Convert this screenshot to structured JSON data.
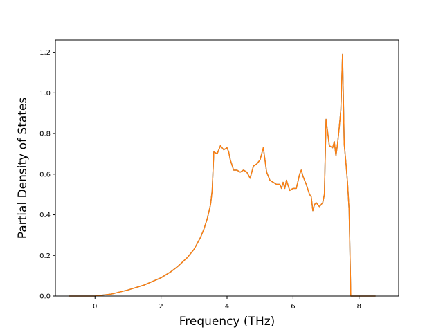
{
  "chart_data": {
    "type": "line",
    "title": "",
    "xlabel": "Frequency (THz)",
    "ylabel": "Partial Density of States",
    "xlim": [
      -1.2,
      9.2
    ],
    "ylim": [
      0.0,
      1.26
    ],
    "xticks": [
      0,
      2,
      4,
      6,
      8
    ],
    "yticks": [
      0.0,
      0.2,
      0.4,
      0.6,
      0.8,
      1.0,
      1.2
    ],
    "xtick_labels": [
      "0",
      "2",
      "4",
      "6",
      "8"
    ],
    "ytick_labels": [
      "0.0",
      "0.2",
      "0.4",
      "0.6",
      "0.8",
      "1.0",
      "1.2"
    ],
    "grid": false,
    "legend": false,
    "series": [
      {
        "color": "#1f77b4",
        "x": [
          -0.8,
          -0.3,
          0,
          0.5,
          1.0,
          1.5,
          2.0,
          2.3,
          2.5,
          2.6,
          2.7,
          2.8,
          3.0,
          3.2,
          3.3,
          3.4,
          3.5,
          3.55,
          3.6,
          3.7,
          3.8,
          3.9,
          4.0,
          4.05,
          4.1,
          4.2,
          4.3,
          4.4,
          4.5,
          4.6,
          4.7,
          4.8,
          4.9,
          5.0,
          5.05,
          5.1,
          5.2,
          5.3,
          5.4,
          5.5,
          5.6,
          5.65,
          5.7,
          5.75,
          5.8,
          5.9,
          6.0,
          6.1,
          6.2,
          6.25,
          6.3,
          6.4,
          6.5,
          6.55,
          6.6,
          6.65,
          6.7,
          6.8,
          6.9,
          6.95,
          7.0,
          7.1,
          7.2,
          7.25,
          7.3,
          7.35,
          7.4,
          7.45,
          7.5,
          7.55,
          7.6,
          7.65,
          7.7,
          7.75,
          8.0,
          8.5
        ],
        "y": [
          0.0,
          0.0,
          0.0,
          0.01,
          0.03,
          0.055,
          0.09,
          0.12,
          0.145,
          0.16,
          0.175,
          0.19,
          0.23,
          0.29,
          0.33,
          0.38,
          0.45,
          0.52,
          0.71,
          0.7,
          0.74,
          0.72,
          0.73,
          0.71,
          0.67,
          0.62,
          0.62,
          0.61,
          0.62,
          0.61,
          0.58,
          0.64,
          0.65,
          0.67,
          0.7,
          0.73,
          0.61,
          0.57,
          0.56,
          0.55,
          0.55,
          0.53,
          0.56,
          0.53,
          0.57,
          0.52,
          0.53,
          0.53,
          0.6,
          0.62,
          0.59,
          0.55,
          0.5,
          0.49,
          0.42,
          0.45,
          0.46,
          0.44,
          0.46,
          0.5,
          0.87,
          0.74,
          0.73,
          0.76,
          0.69,
          0.75,
          0.83,
          0.92,
          1.19,
          0.75,
          0.66,
          0.56,
          0.42,
          0.0,
          0.0,
          0.0
        ]
      },
      {
        "color": "#ff7f0e",
        "x": [
          -0.8,
          -0.3,
          0,
          0.5,
          1.0,
          1.5,
          2.0,
          2.3,
          2.5,
          2.6,
          2.7,
          2.8,
          3.0,
          3.2,
          3.3,
          3.4,
          3.5,
          3.55,
          3.6,
          3.7,
          3.8,
          3.9,
          4.0,
          4.05,
          4.1,
          4.2,
          4.3,
          4.4,
          4.5,
          4.6,
          4.7,
          4.8,
          4.9,
          5.0,
          5.05,
          5.1,
          5.2,
          5.3,
          5.4,
          5.5,
          5.6,
          5.65,
          5.7,
          5.75,
          5.8,
          5.9,
          6.0,
          6.1,
          6.2,
          6.25,
          6.3,
          6.4,
          6.5,
          6.55,
          6.6,
          6.65,
          6.7,
          6.8,
          6.9,
          6.95,
          7.0,
          7.1,
          7.2,
          7.25,
          7.3,
          7.35,
          7.4,
          7.45,
          7.5,
          7.55,
          7.6,
          7.65,
          7.7,
          7.75,
          8.0,
          8.5
        ],
        "y": [
          0.0,
          0.0,
          0.0,
          0.01,
          0.03,
          0.055,
          0.09,
          0.12,
          0.145,
          0.16,
          0.175,
          0.19,
          0.23,
          0.29,
          0.33,
          0.38,
          0.45,
          0.52,
          0.71,
          0.7,
          0.74,
          0.72,
          0.73,
          0.71,
          0.67,
          0.62,
          0.62,
          0.61,
          0.62,
          0.61,
          0.58,
          0.64,
          0.65,
          0.67,
          0.7,
          0.73,
          0.61,
          0.57,
          0.56,
          0.55,
          0.55,
          0.53,
          0.56,
          0.53,
          0.57,
          0.52,
          0.53,
          0.53,
          0.6,
          0.62,
          0.59,
          0.55,
          0.5,
          0.49,
          0.42,
          0.45,
          0.46,
          0.44,
          0.46,
          0.5,
          0.87,
          0.74,
          0.73,
          0.76,
          0.69,
          0.75,
          0.83,
          0.92,
          1.19,
          0.75,
          0.66,
          0.56,
          0.42,
          0.0,
          0.0,
          0.0
        ]
      }
    ]
  }
}
